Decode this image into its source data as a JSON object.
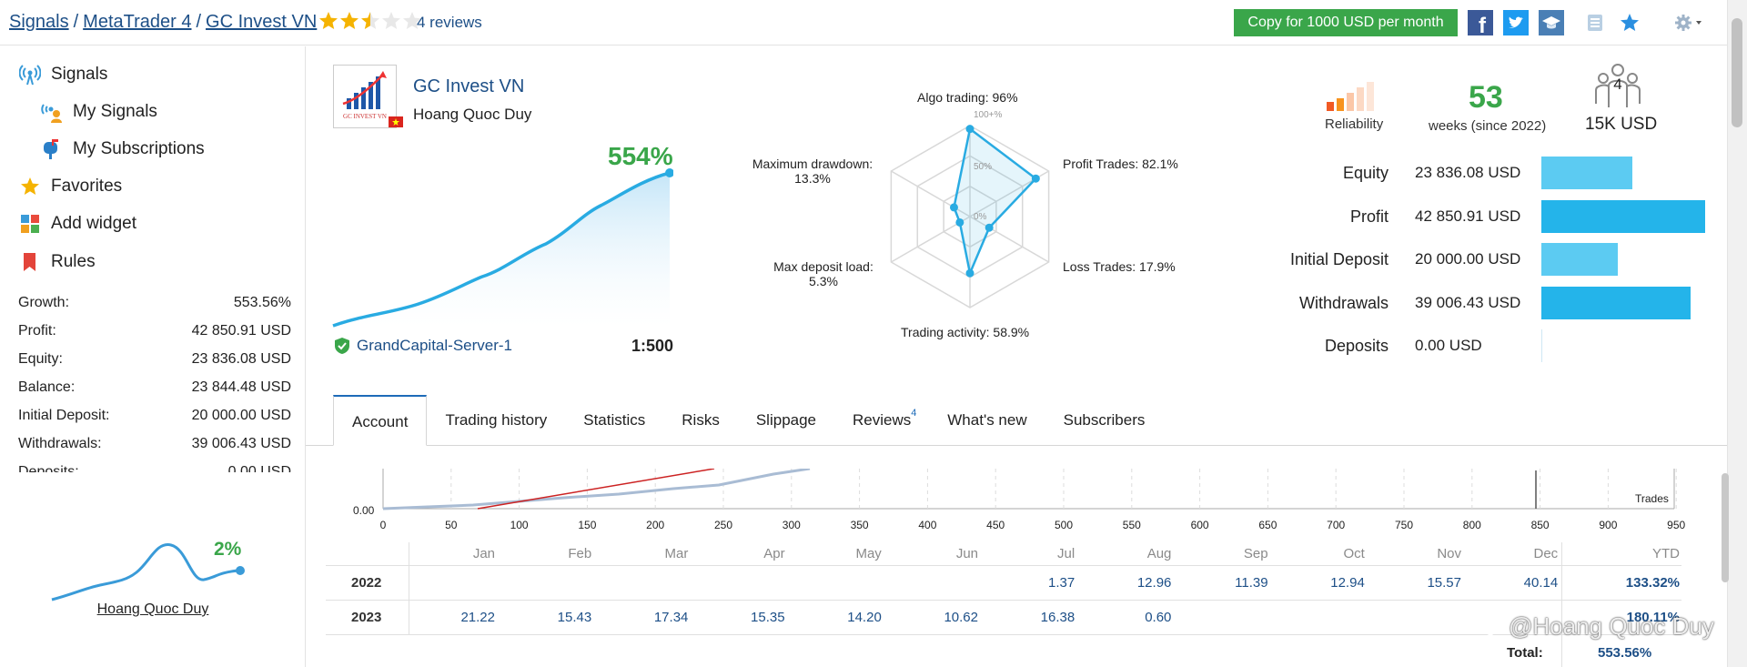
{
  "breadcrumb": {
    "signals": "Signals",
    "platform": "MetaTrader 4",
    "current": "GC Invest VN",
    "separator": "/"
  },
  "rating": {
    "value": 2.5,
    "max": 5,
    "reviews_link": "4 reviews"
  },
  "copy_button": "Copy for 1000 USD per month",
  "icons": {
    "facebook": "facebook-icon",
    "twitter": "twitter-icon",
    "education": "graduation-cap-icon",
    "badge": "badge-icon",
    "favorite": "star-icon",
    "settings": "gear-icon"
  },
  "sidebar": {
    "nav": [
      {
        "label": "Signals",
        "icon": "signal-antenna-icon"
      },
      {
        "label": "My Signals",
        "icon": "my-signals-icon"
      },
      {
        "label": "My Subscriptions",
        "icon": "mailbox-icon"
      },
      {
        "label": "Favorites",
        "icon": "star-icon"
      },
      {
        "label": "Add widget",
        "icon": "widget-icon"
      },
      {
        "label": "Rules",
        "icon": "bookmark-icon"
      }
    ],
    "stats": [
      {
        "label": "Growth:",
        "value": "553.56%"
      },
      {
        "label": "Profit:",
        "value": "42 850.91 USD"
      },
      {
        "label": "Equity:",
        "value": "23 836.08 USD"
      },
      {
        "label": "Balance:",
        "value": "23 844.48 USD"
      },
      {
        "label": "Initial Deposit:",
        "value": "20 000.00 USD"
      },
      {
        "label": "Withdrawals:",
        "value": "39 006.43 USD"
      },
      {
        "label": "Deposits:",
        "value": "0.00 USD"
      }
    ],
    "mini_card": {
      "growth": "2%",
      "name": "Hoang Quoc Duy"
    }
  },
  "signal": {
    "name": "GC Invest VN",
    "owner": "Hoang Quoc Duy",
    "logo_text": "GC INVEST VN",
    "growth": "554%",
    "server": "GrandCapital-Server-1",
    "leverage": "1:500"
  },
  "radar": {
    "algo": "Algo trading: 96%",
    "profit_trades": "Profit Trades: 82.1%",
    "loss_trades": "Loss Trades: 17.9%",
    "activity": "Trading activity: 58.9%",
    "deposit_load_1": "Max deposit load:",
    "deposit_load_2": "5.3%",
    "drawdown_1": "Maximum drawdown:",
    "drawdown_2": "13.3%",
    "scale_100": "100+%",
    "scale_50": "50%",
    "scale_0": "0%",
    "values": {
      "algo": 0.96,
      "profit": 0.821,
      "loss": 0.179,
      "activity": 0.589,
      "deposit_load": 0.053,
      "drawdown": 0.133
    }
  },
  "summary": {
    "reliability_label": "Reliability",
    "weeks": "53",
    "weeks_label": "weeks (since 2022)",
    "subscribers_count": "4",
    "subscribers_funds": "15K USD"
  },
  "financials": [
    {
      "label": "Equity",
      "value": "23 836.08 USD",
      "amount": 23836.08,
      "color": "#5ccbf2"
    },
    {
      "label": "Profit",
      "value": "42 850.91 USD",
      "amount": 42850.91,
      "color": "#24b4ea"
    },
    {
      "label": "Initial Deposit",
      "value": "20 000.00 USD",
      "amount": 20000,
      "color": "#5ccbf2"
    },
    {
      "label": "Withdrawals",
      "value": "39 006.43 USD",
      "amount": 39006.43,
      "color": "#24b4ea"
    },
    {
      "label": "Deposits",
      "value": "0.00 USD",
      "amount": 0,
      "color": "#5ccbf2"
    }
  ],
  "tabs": [
    {
      "label": "Account",
      "active": true
    },
    {
      "label": "Trading history"
    },
    {
      "label": "Statistics"
    },
    {
      "label": "Risks"
    },
    {
      "label": "Slippage"
    },
    {
      "label": "Reviews",
      "badge": "4"
    },
    {
      "label": "What's new"
    },
    {
      "label": "Subscribers"
    }
  ],
  "trade_chart": {
    "y_label": "0.00",
    "trades_label": "Trades",
    "x_ticks": [
      "0",
      "50",
      "100",
      "150",
      "200",
      "250",
      "300",
      "350",
      "400",
      "450",
      "500",
      "550",
      "600",
      "650",
      "700",
      "750",
      "800",
      "850",
      "900",
      "950"
    ]
  },
  "monthly": {
    "months": [
      "Jan",
      "Feb",
      "Mar",
      "Apr",
      "May",
      "Jun",
      "Jul",
      "Aug",
      "Sep",
      "Oct",
      "Nov",
      "Dec"
    ],
    "ytd_header": "YTD",
    "rows": [
      {
        "year": "2022",
        "values": [
          "",
          "",
          "",
          "",
          "",
          "",
          "1.37",
          "12.96",
          "11.39",
          "12.94",
          "15.57",
          "40.14"
        ],
        "ytd": "133.32%"
      },
      {
        "year": "2023",
        "values": [
          "21.22",
          "15.43",
          "17.34",
          "15.35",
          "14.20",
          "10.62",
          "16.38",
          "0.60",
          "",
          "",
          "",
          ""
        ],
        "ytd": "180.11%"
      }
    ],
    "total_label": "Total:",
    "total_value": "553.56%"
  },
  "watermark": "@Hoang Quoc Duy",
  "colors": {
    "link": "#1d4f87",
    "green": "#3aa64a",
    "accent": "#2bb6ec"
  }
}
